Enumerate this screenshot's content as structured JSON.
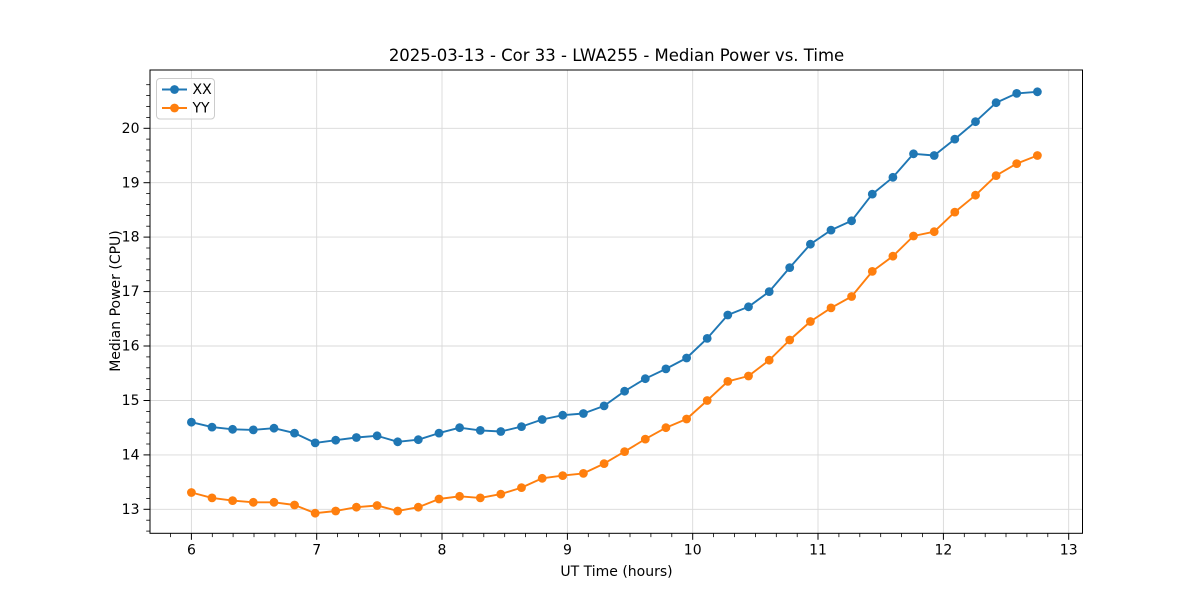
{
  "figure": {
    "title": "2025-03-13 - Cor 33 - LWA255 - Median Power vs. Time"
  },
  "chart_data": {
    "type": "line",
    "title": "2025-03-13 - Cor 33 - LWA255 - Median Power vs. Time",
    "xlabel": "UT Time (hours)",
    "ylabel": "Median Power (CPU)",
    "xlim": [
      5.67,
      13.11
    ],
    "ylim": [
      12.56,
      21.07
    ],
    "x_ticks": [
      6,
      7,
      8,
      9,
      10,
      11,
      12,
      13
    ],
    "y_ticks": [
      13,
      14,
      15,
      16,
      17,
      18,
      19,
      20
    ],
    "x_minor_step": 0.1667,
    "y_minor_step": 0.2,
    "grid": "major",
    "legend_position": "upper-left",
    "x": [
      6.0,
      6.165,
      6.329,
      6.494,
      6.659,
      6.823,
      6.988,
      7.152,
      7.317,
      7.482,
      7.646,
      7.811,
      7.976,
      8.14,
      8.305,
      8.469,
      8.634,
      8.799,
      8.963,
      9.128,
      9.293,
      9.457,
      9.622,
      9.786,
      9.951,
      10.116,
      10.28,
      10.445,
      10.61,
      10.774,
      10.939,
      11.103,
      11.268,
      11.433,
      11.597,
      11.762,
      11.927,
      12.091,
      12.256,
      12.421,
      12.585,
      12.75
    ],
    "series": [
      {
        "name": "XX",
        "color": "#1f77b4",
        "marker": "circle",
        "values": [
          14.6,
          14.51,
          14.47,
          14.46,
          14.49,
          14.4,
          14.22,
          14.27,
          14.32,
          14.35,
          14.24,
          14.28,
          14.4,
          14.5,
          14.45,
          14.43,
          14.52,
          14.65,
          14.73,
          14.76,
          14.9,
          15.17,
          15.4,
          15.58,
          15.78,
          16.14,
          16.57,
          16.72,
          17.0,
          17.44,
          17.87,
          18.13,
          18.3,
          18.79,
          19.1,
          19.53,
          19.5,
          19.8,
          20.12,
          20.47,
          20.64,
          20.67
        ]
      },
      {
        "name": "YY",
        "color": "#ff7f0e",
        "marker": "circle",
        "values": [
          13.31,
          13.21,
          13.16,
          13.13,
          13.13,
          13.08,
          12.93,
          12.97,
          13.04,
          13.07,
          12.97,
          13.04,
          13.19,
          13.24,
          13.21,
          13.28,
          13.4,
          13.57,
          13.62,
          13.66,
          13.84,
          14.06,
          14.29,
          14.5,
          14.66,
          15.0,
          15.35,
          15.45,
          15.74,
          16.11,
          16.45,
          16.7,
          16.91,
          17.37,
          17.65,
          18.02,
          18.1,
          18.46,
          18.77,
          19.13,
          19.35,
          19.5
        ]
      }
    ]
  },
  "style": {
    "grid_color": "#d9d9d9",
    "spine_color": "#000000",
    "tick_color": "#000000",
    "text_color": "#000000",
    "legend_border": "#cccccc",
    "legend_bg": "#ffffff"
  }
}
